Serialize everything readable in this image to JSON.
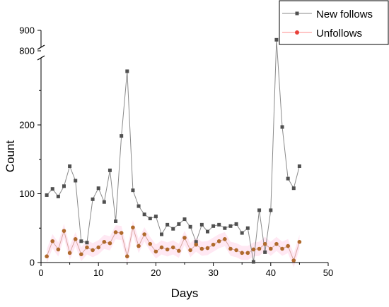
{
  "chart_data": {
    "type": "line",
    "xlabel": "Days",
    "ylabel": "Count",
    "xlim": [
      0,
      50
    ],
    "x_ticks": [
      0,
      10,
      20,
      30,
      40,
      50
    ],
    "y_axis": {
      "broken": true,
      "lower_segment": [
        0,
        300
      ],
      "upper_segment": [
        800,
        900
      ],
      "ticks": [
        0,
        100,
        200,
        800,
        900
      ]
    },
    "grid": false,
    "legend": "top-right",
    "series": [
      {
        "name": "New follows",
        "color": "#505050",
        "marker": "square",
        "x": [
          1,
          2,
          3,
          4,
          5,
          6,
          7,
          8,
          9,
          10,
          11,
          12,
          13,
          14,
          15,
          16,
          17,
          18,
          19,
          20,
          21,
          22,
          23,
          24,
          25,
          26,
          27,
          28,
          29,
          30,
          31,
          32,
          33,
          34,
          35,
          36,
          37,
          38,
          39,
          40,
          41,
          42,
          43,
          44,
          45
        ],
        "values": [
          98,
          107,
          96,
          111,
          140,
          119,
          31,
          29,
          92,
          108,
          88,
          134,
          60,
          184,
          278,
          105,
          82,
          70,
          64,
          67,
          41,
          55,
          49,
          56,
          63,
          52,
          30,
          55,
          45,
          53,
          55,
          50,
          53,
          56,
          43,
          50,
          1,
          76,
          15,
          76,
          854,
          197,
          122,
          108,
          140
        ]
      },
      {
        "name": "Unfollows",
        "color": "#b06a2c",
        "marker": "circle",
        "x": [
          1,
          2,
          3,
          4,
          5,
          6,
          7,
          8,
          9,
          10,
          11,
          12,
          13,
          14,
          15,
          16,
          17,
          18,
          19,
          20,
          21,
          22,
          23,
          24,
          25,
          26,
          27,
          28,
          29,
          30,
          31,
          32,
          33,
          34,
          35,
          36,
          37,
          38,
          39,
          40,
          41,
          42,
          43,
          44,
          45
        ],
        "values": [
          9,
          31,
          19,
          46,
          14,
          34,
          12,
          22,
          18,
          22,
          30,
          28,
          44,
          43,
          9,
          51,
          24,
          41,
          27,
          16,
          22,
          19,
          22,
          17,
          36,
          18,
          26,
          20,
          21,
          26,
          31,
          34,
          20,
          18,
          14,
          14,
          19,
          20,
          27,
          20,
          27,
          20,
          24,
          3,
          30
        ]
      }
    ]
  }
}
